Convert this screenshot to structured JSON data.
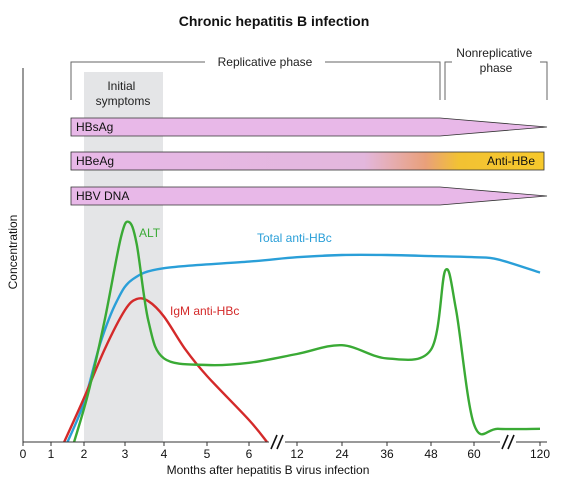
{
  "chart_data": {
    "type": "line",
    "title": "Chronic hepatitis B infection",
    "xlabel": "Months after hepatitis B virus infection",
    "ylabel": "Concentration",
    "x_ticks": [
      "0",
      "1",
      "2",
      "3",
      "4",
      "5",
      "6",
      "12",
      "24",
      "36",
      "48",
      "60",
      "120"
    ],
    "phases": [
      {
        "name": "Replicative phase",
        "from": "1.5",
        "to": "50"
      },
      {
        "name": "Nonreplicative phase",
        "from": "50",
        "to": "120"
      }
    ],
    "shaded_region": {
      "label": "Initial symptoms",
      "from": 1.8,
      "to": 4
    },
    "markers": [
      {
        "name": "HBsAg",
        "from": 1.5,
        "to": 120
      },
      {
        "name": "HBeAg",
        "from": 1.5,
        "to": 50,
        "followed_by": "Anti-HBe"
      },
      {
        "name": "HBV DNA",
        "from": 1.5,
        "to": 50
      }
    ],
    "series": [
      {
        "name": "ALT",
        "color": "#3aaa35",
        "points": [
          [
            1.7,
            0
          ],
          [
            2.1,
            22
          ],
          [
            2.5,
            55
          ],
          [
            2.9,
            93
          ],
          [
            3.1,
            100
          ],
          [
            3.3,
            90
          ],
          [
            3.6,
            55
          ],
          [
            4,
            38
          ],
          [
            5,
            35
          ],
          [
            6,
            36
          ],
          [
            12,
            40
          ],
          [
            24,
            44
          ],
          [
            36,
            38
          ],
          [
            48,
            42
          ],
          [
            52,
            78
          ],
          [
            55,
            60
          ],
          [
            60,
            8
          ],
          [
            80,
            6
          ],
          [
            120,
            6
          ]
        ]
      },
      {
        "name": "Total anti-HBc",
        "color": "#2a9fd8",
        "points": [
          [
            1.5,
            0
          ],
          [
            2,
            18
          ],
          [
            2.4,
            45
          ],
          [
            2.8,
            64
          ],
          [
            3.2,
            74
          ],
          [
            4,
            79
          ],
          [
            6,
            82
          ],
          [
            12,
            84
          ],
          [
            24,
            85
          ],
          [
            36,
            85
          ],
          [
            48,
            84.5
          ],
          [
            60,
            84
          ],
          [
            80,
            83
          ],
          [
            120,
            77
          ]
        ]
      },
      {
        "name": "IgM anti-HBc",
        "color": "#d42a2a",
        "points": [
          [
            1.4,
            0
          ],
          [
            2,
            20
          ],
          [
            2.5,
            42
          ],
          [
            3,
            60
          ],
          [
            3.3,
            65
          ],
          [
            3.6,
            64
          ],
          [
            4,
            57
          ],
          [
            4.5,
            42
          ],
          [
            5,
            30
          ],
          [
            6,
            10
          ],
          [
            6.4,
            0
          ]
        ]
      }
    ]
  }
}
